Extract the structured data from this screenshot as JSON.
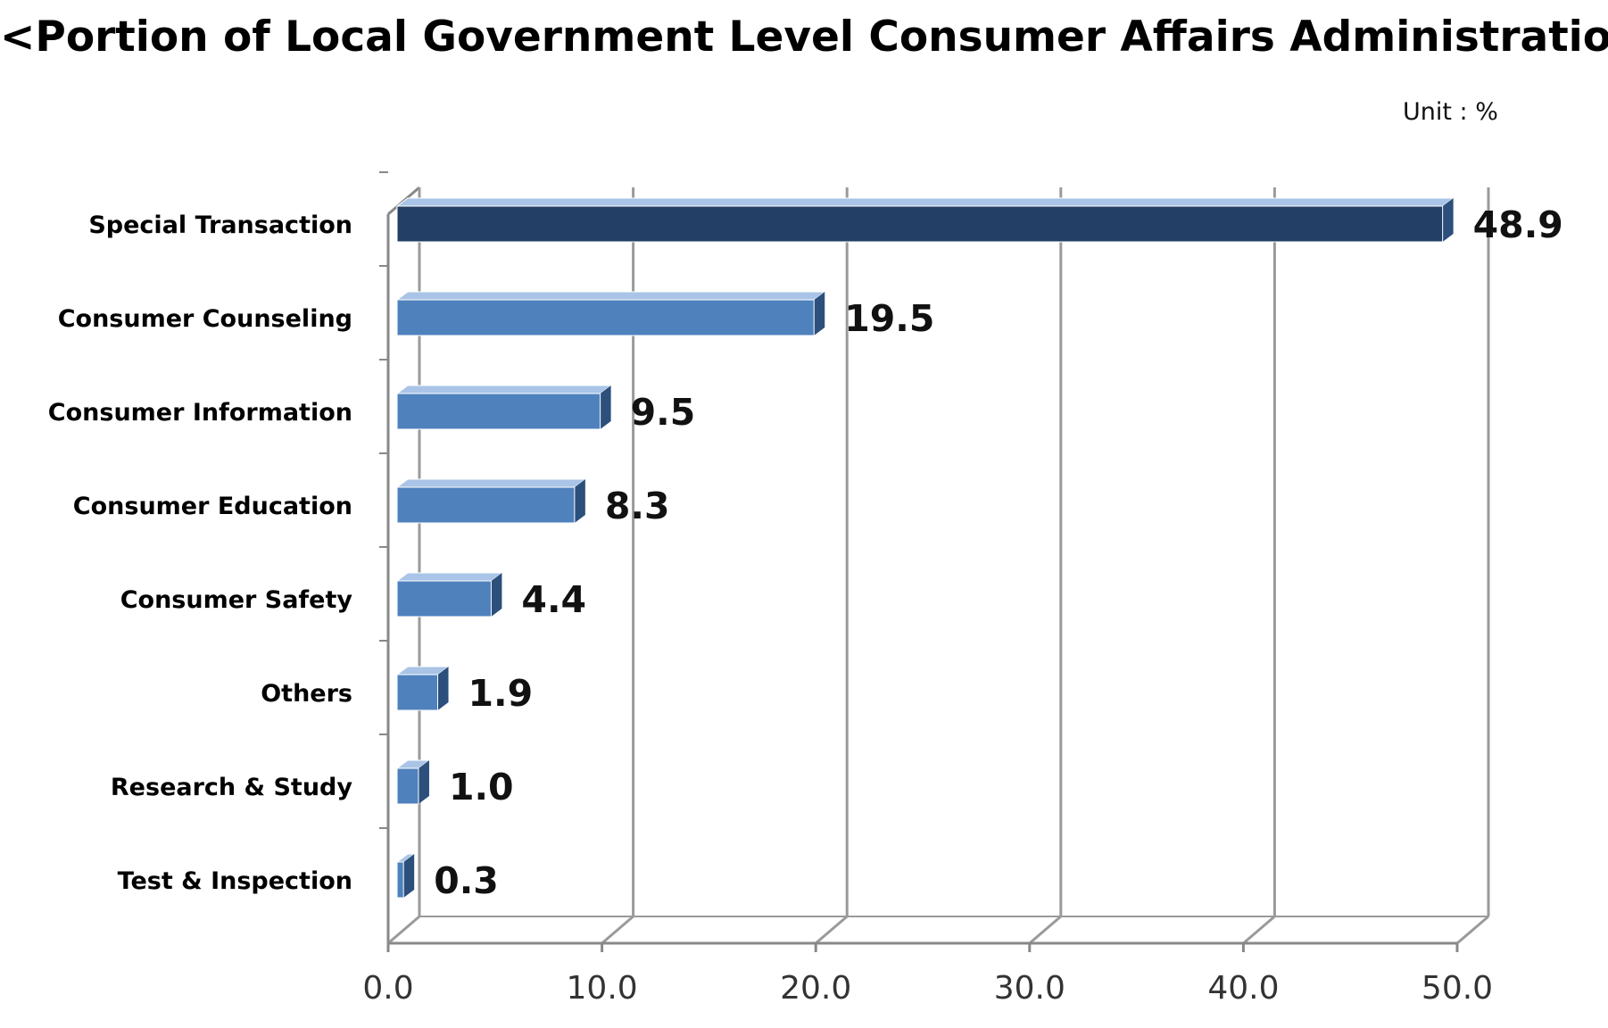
{
  "title": {
    "text": "<Portion of Local Government Level Consumer Affairs Administration",
    "superscript": "*",
    "suffix": ">"
  },
  "unit_label": "Unit : %",
  "colors": {
    "highlight_bar": "#243f66",
    "bar": "#4f81bd",
    "bar_top": "#a9c4e6",
    "bar_side": "#2c4f7c",
    "grid": "#9a9a9a",
    "axis": "#888888"
  },
  "chart_data": {
    "type": "bar",
    "orientation": "horizontal",
    "categories": [
      "Special Transaction",
      "Consumer Counseling",
      "Consumer Information",
      "Consumer Education",
      "Consumer Safety",
      "Others",
      "Research & Study",
      "Test & Inspection"
    ],
    "values": [
      48.9,
      19.5,
      9.5,
      8.3,
      4.4,
      1.9,
      1.0,
      0.3
    ],
    "value_labels": [
      "48.9",
      "19.5",
      "9.5",
      "8.3",
      "4.4",
      "1.9",
      "1.0",
      "0.3"
    ],
    "highlight_index": 0,
    "xlim": [
      0,
      50
    ],
    "xticks": [
      0,
      10,
      20,
      30,
      40,
      50
    ],
    "xtick_labels": [
      "0.0",
      "10.0",
      "20.0",
      "30.0",
      "40.0",
      "50.0"
    ],
    "xlabel": "",
    "ylabel": "",
    "grid": true,
    "style": "3d"
  }
}
